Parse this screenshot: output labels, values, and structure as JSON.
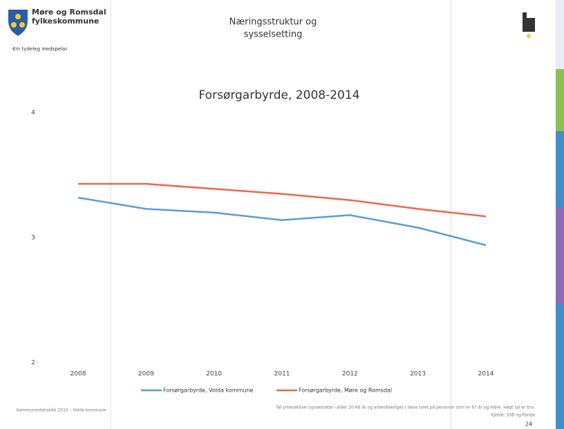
{
  "header": {
    "org_line1": "Møre og Romsdal",
    "org_line2": "fylkeskommune",
    "slogan": "-Ein tydeleg medspelar",
    "section_title_line1": "Næringsstruktur og",
    "section_title_line2": "sysselsetting"
  },
  "chart_data": {
    "type": "line",
    "title": "Forsørgarbyrde, 2008-2014",
    "categories": [
      "2008",
      "2009",
      "2010",
      "2011",
      "2012",
      "2013",
      "2014"
    ],
    "series": [
      {
        "name": "Forsørgarbyrde, Volda kommune",
        "color": "#5b9bd5",
        "values": [
          3.32,
          3.23,
          3.2,
          3.14,
          3.18,
          3.08,
          2.94
        ]
      },
      {
        "name": "Forsørgarbyrde, Møre og Romsdal",
        "color": "#f0654b",
        "values": [
          3.43,
          3.43,
          3.39,
          3.35,
          3.3,
          3.23,
          3.17
        ]
      }
    ],
    "ylim": [
      2,
      4
    ],
    "yticks": [
      2,
      3,
      4
    ],
    "grid": false,
    "legend": "bottom"
  },
  "footer": {
    "left": "Kommunestatistikk 2015 – Volda kommune",
    "note": "Tal yrkesaktive (sysselsatte i alder 20-66 år og arbeidsledige) i høve talet på personar som er 67 år og eldre. Høgt tal er bra.",
    "source": "Kjelde: SSB og Panda",
    "page": "24"
  }
}
